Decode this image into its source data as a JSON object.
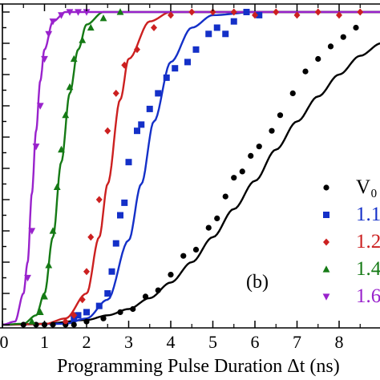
{
  "chart_data": {
    "type": "scatter",
    "panel_label": "(b)",
    "xlabel": "Programming Pulse Duration Δt (ns)",
    "ylabel": "",
    "xlim": [
      0,
      9
    ],
    "ylim": [
      0,
      1
    ],
    "x_ticks": [
      0,
      1,
      2,
      3,
      4,
      5,
      6,
      7,
      8
    ],
    "grid": false,
    "legend_position": "bottom-right",
    "legend_entries": [
      "V₀",
      "1.1",
      "1.2",
      "1.4",
      "1.6"
    ],
    "series": [
      {
        "name": "V₀",
        "marker": "circle",
        "color": "#000000",
        "points": [
          [
            0.5,
            0.0
          ],
          [
            0.8,
            0.0
          ],
          [
            1.0,
            0.0
          ],
          [
            1.2,
            0.0
          ],
          [
            1.5,
            0.0
          ],
          [
            1.7,
            0.0
          ],
          [
            2.0,
            0.01
          ],
          [
            2.4,
            0.02
          ],
          [
            2.8,
            0.04
          ],
          [
            3.1,
            0.05
          ],
          [
            3.4,
            0.09
          ],
          [
            3.7,
            0.11
          ],
          [
            4.0,
            0.16
          ],
          [
            4.3,
            0.22
          ],
          [
            4.6,
            0.24
          ],
          [
            4.9,
            0.31
          ],
          [
            5.1,
            0.34
          ],
          [
            5.3,
            0.41
          ],
          [
            5.5,
            0.47
          ],
          [
            5.7,
            0.49
          ],
          [
            5.9,
            0.54
          ],
          [
            6.1,
            0.57
          ],
          [
            6.4,
            0.62
          ],
          [
            6.6,
            0.67
          ],
          [
            6.9,
            0.74
          ],
          [
            7.2,
            0.81
          ],
          [
            7.5,
            0.85
          ],
          [
            7.8,
            0.89
          ],
          [
            8.1,
            0.92
          ],
          [
            8.4,
            0.95
          ]
        ],
        "fit": [
          [
            0.0,
            0.0
          ],
          [
            1.0,
            0.003
          ],
          [
            2.0,
            0.015
          ],
          [
            2.5,
            0.03
          ],
          [
            3.0,
            0.05
          ],
          [
            3.5,
            0.085
          ],
          [
            4.0,
            0.135
          ],
          [
            4.5,
            0.2
          ],
          [
            5.0,
            0.28
          ],
          [
            5.5,
            0.37
          ],
          [
            6.0,
            0.46
          ],
          [
            6.5,
            0.56
          ],
          [
            7.0,
            0.65
          ],
          [
            7.5,
            0.73
          ],
          [
            8.0,
            0.8
          ],
          [
            8.5,
            0.86
          ],
          [
            9.0,
            0.9
          ]
        ]
      },
      {
        "name": "1.1",
        "marker": "square",
        "color": "#1430c8",
        "points": [
          [
            1.7,
            0.02
          ],
          [
            1.8,
            0.03
          ],
          [
            2.0,
            0.04
          ],
          [
            2.3,
            0.06
          ],
          [
            2.5,
            0.1
          ],
          [
            2.6,
            0.17
          ],
          [
            2.7,
            0.26
          ],
          [
            2.8,
            0.35
          ],
          [
            2.9,
            0.39
          ],
          [
            3.0,
            0.52
          ],
          [
            3.2,
            0.62
          ],
          [
            3.3,
            0.64
          ],
          [
            3.5,
            0.69
          ],
          [
            3.7,
            0.74
          ],
          [
            3.9,
            0.79
          ],
          [
            4.1,
            0.82
          ],
          [
            4.4,
            0.84
          ],
          [
            4.6,
            0.88
          ],
          [
            4.9,
            0.93
          ],
          [
            5.1,
            0.95
          ],
          [
            5.3,
            0.93
          ],
          [
            5.5,
            0.97
          ],
          [
            5.8,
            1.0
          ],
          [
            6.1,
            0.99
          ]
        ],
        "fit": [
          [
            0.0,
            0.0
          ],
          [
            1.5,
            0.003
          ],
          [
            2.0,
            0.02
          ],
          [
            2.5,
            0.08
          ],
          [
            3.0,
            0.27
          ],
          [
            3.3,
            0.45
          ],
          [
            3.6,
            0.65
          ],
          [
            4.0,
            0.84
          ],
          [
            4.5,
            0.95
          ],
          [
            5.0,
            0.99
          ],
          [
            6.0,
            1.0
          ],
          [
            9.0,
            1.0
          ]
        ]
      },
      {
        "name": "1.2",
        "marker": "diamond",
        "color": "#cc2020",
        "points": [
          [
            1.5,
            0.01
          ],
          [
            1.7,
            0.03
          ],
          [
            1.9,
            0.08
          ],
          [
            2.0,
            0.17
          ],
          [
            2.1,
            0.28
          ],
          [
            2.3,
            0.4
          ],
          [
            2.5,
            0.62
          ],
          [
            2.7,
            0.74
          ],
          [
            2.9,
            0.83
          ],
          [
            3.2,
            0.88
          ],
          [
            3.6,
            0.95
          ],
          [
            4.0,
            0.99
          ],
          [
            4.5,
            1.0
          ],
          [
            5.0,
            1.0
          ],
          [
            5.5,
            1.0
          ],
          [
            6.0,
            0.99
          ],
          [
            6.5,
            1.0
          ],
          [
            7.0,
            0.99
          ],
          [
            7.5,
            1.0
          ],
          [
            8.0,
            0.99
          ],
          [
            8.5,
            1.0
          ]
        ],
        "fit": [
          [
            0.0,
            0.0
          ],
          [
            1.0,
            0.002
          ],
          [
            1.5,
            0.02
          ],
          [
            2.0,
            0.1
          ],
          [
            2.3,
            0.28
          ],
          [
            2.5,
            0.45
          ],
          [
            2.8,
            0.72
          ],
          [
            3.0,
            0.85
          ],
          [
            3.5,
            0.97
          ],
          [
            4.0,
            1.0
          ],
          [
            9.0,
            1.0
          ]
        ]
      },
      {
        "name": "1.4",
        "marker": "triangle-up",
        "color": "#157a15",
        "points": [
          [
            0.7,
            0.01
          ],
          [
            0.9,
            0.04
          ],
          [
            1.0,
            0.09
          ],
          [
            1.1,
            0.19
          ],
          [
            1.2,
            0.3
          ],
          [
            1.3,
            0.44
          ],
          [
            1.4,
            0.56
          ],
          [
            1.5,
            0.67
          ],
          [
            1.6,
            0.76
          ],
          [
            1.7,
            0.85
          ],
          [
            1.9,
            0.91
          ],
          [
            2.1,
            0.95
          ],
          [
            2.4,
            0.98
          ],
          [
            2.8,
            1.0
          ]
        ],
        "fit": [
          [
            0.0,
            0.0
          ],
          [
            0.5,
            0.003
          ],
          [
            0.8,
            0.03
          ],
          [
            1.0,
            0.1
          ],
          [
            1.2,
            0.28
          ],
          [
            1.4,
            0.52
          ],
          [
            1.6,
            0.74
          ],
          [
            1.8,
            0.88
          ],
          [
            2.0,
            0.96
          ],
          [
            2.4,
            1.0
          ],
          [
            9.0,
            1.0
          ]
        ]
      },
      {
        "name": "1.6",
        "marker": "triangle-down",
        "color": "#9922cc",
        "points": [
          [
            0.6,
            0.15
          ],
          [
            0.7,
            0.3
          ],
          [
            0.8,
            0.57
          ],
          [
            0.9,
            0.7
          ],
          [
            1.0,
            0.85
          ],
          [
            1.1,
            0.93
          ],
          [
            1.2,
            0.97
          ],
          [
            1.4,
            0.99
          ],
          [
            1.6,
            1.0
          ],
          [
            1.8,
            1.0
          ],
          [
            2.0,
            1.0
          ]
        ],
        "fit": [
          [
            0.0,
            0.0
          ],
          [
            0.3,
            0.01
          ],
          [
            0.5,
            0.1
          ],
          [
            0.6,
            0.2
          ],
          [
            0.7,
            0.42
          ],
          [
            0.8,
            0.62
          ],
          [
            0.9,
            0.78
          ],
          [
            1.0,
            0.88
          ],
          [
            1.2,
            0.97
          ],
          [
            1.5,
            1.0
          ],
          [
            9.0,
            1.0
          ]
        ]
      }
    ]
  }
}
